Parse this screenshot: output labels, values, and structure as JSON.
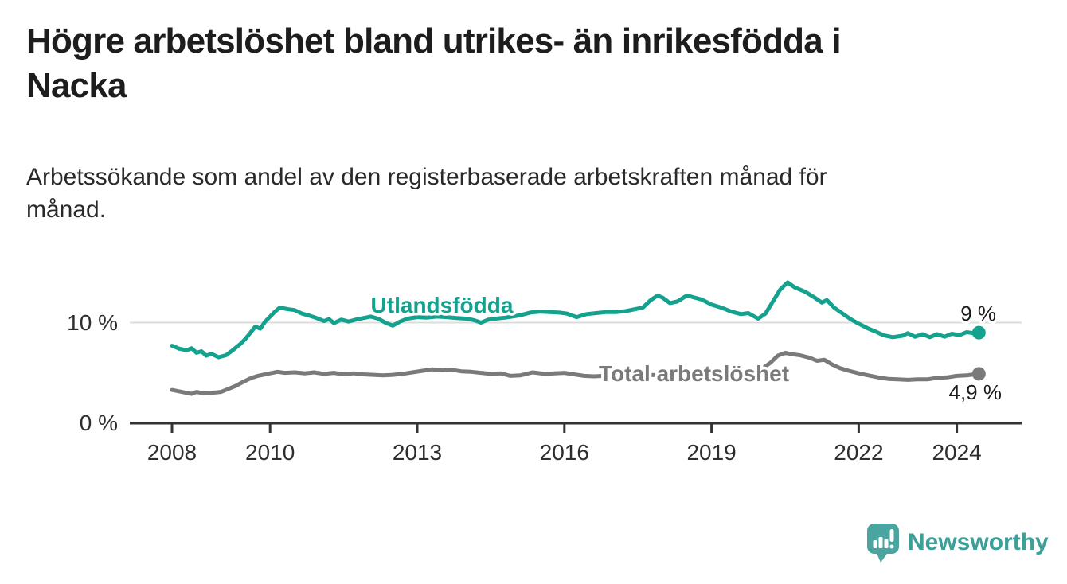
{
  "page": {
    "title": "Högre arbetslöshet bland utrikes- än inrikesfödda i\nNacka",
    "subtitle": "Arbetssökande som andel av den registerbaserade arbetskraften månad för\nmånad."
  },
  "colors": {
    "accent_teal": "#14a18d",
    "series_gray": "#7a7a7a",
    "grid_gray": "#dcdcdc",
    "axis_dark": "#333333",
    "text_dark": "#1d1d1d",
    "logo_teal": "#4aa5a0",
    "logo_text_teal": "#3aa099"
  },
  "footer": {
    "brand": "Newsworthy",
    "logo_icon": "newsworthy-speech-bubble-bar-chart-icon"
  },
  "chart_data": {
    "type": "line",
    "title": "Högre arbetslöshet bland utrikes- än inrikesfödda i Nacka",
    "subtitle": "Arbetssökande som andel av den registerbaserade arbetskraften månad för månad.",
    "xlabel": "",
    "ylabel": "",
    "unit": "%",
    "x_range": [
      2008,
      2024.45
    ],
    "y_range": [
      0,
      14.8
    ],
    "grid": "horizontal gridline at 10% only",
    "legend_position": "inline labels on lines",
    "y_ticks": [
      {
        "value": 0,
        "label": "0 %"
      },
      {
        "value": 10,
        "label": "10 %"
      }
    ],
    "x_ticks": [
      {
        "value": 2008,
        "label": "2008"
      },
      {
        "value": 2010,
        "label": "2010"
      },
      {
        "value": 2013,
        "label": "2013"
      },
      {
        "value": 2016,
        "label": "2016"
      },
      {
        "value": 2019,
        "label": "2019"
      },
      {
        "value": 2022,
        "label": "2022"
      },
      {
        "value": 2024,
        "label": "2024"
      }
    ],
    "series": [
      {
        "name": "Utlandsfödda",
        "color": "#14a18d",
        "end_label": "9 %",
        "end_value": 9.0,
        "points": [
          [
            2008.0,
            7.7
          ],
          [
            2008.15,
            7.4
          ],
          [
            2008.3,
            7.25
          ],
          [
            2008.4,
            7.45
          ],
          [
            2008.5,
            7.0
          ],
          [
            2008.6,
            7.15
          ],
          [
            2008.7,
            6.7
          ],
          [
            2008.8,
            6.9
          ],
          [
            2008.95,
            6.55
          ],
          [
            2009.1,
            6.75
          ],
          [
            2009.25,
            7.3
          ],
          [
            2009.4,
            7.9
          ],
          [
            2009.5,
            8.4
          ],
          [
            2009.6,
            9.0
          ],
          [
            2009.7,
            9.6
          ],
          [
            2009.8,
            9.4
          ],
          [
            2009.9,
            10.1
          ],
          [
            2010.0,
            10.6
          ],
          [
            2010.1,
            11.1
          ],
          [
            2010.2,
            11.5
          ],
          [
            2010.35,
            11.35
          ],
          [
            2010.5,
            11.25
          ],
          [
            2010.65,
            10.9
          ],
          [
            2010.8,
            10.7
          ],
          [
            2010.95,
            10.45
          ],
          [
            2011.1,
            10.15
          ],
          [
            2011.2,
            10.35
          ],
          [
            2011.3,
            9.95
          ],
          [
            2011.45,
            10.3
          ],
          [
            2011.6,
            10.1
          ],
          [
            2011.75,
            10.3
          ],
          [
            2011.9,
            10.45
          ],
          [
            2012.05,
            10.6
          ],
          [
            2012.2,
            10.4
          ],
          [
            2012.35,
            10.0
          ],
          [
            2012.5,
            9.7
          ],
          [
            2012.65,
            10.1
          ],
          [
            2012.8,
            10.4
          ],
          [
            2013.0,
            10.55
          ],
          [
            2013.2,
            10.5
          ],
          [
            2013.4,
            10.6
          ],
          [
            2013.6,
            10.55
          ],
          [
            2013.8,
            10.45
          ],
          [
            2014.0,
            10.4
          ],
          [
            2014.15,
            10.25
          ],
          [
            2014.3,
            10.0
          ],
          [
            2014.45,
            10.3
          ],
          [
            2014.6,
            10.4
          ],
          [
            2014.8,
            10.5
          ],
          [
            2015.0,
            10.65
          ],
          [
            2015.15,
            10.8
          ],
          [
            2015.3,
            11.0
          ],
          [
            2015.5,
            11.1
          ],
          [
            2015.7,
            11.05
          ],
          [
            2015.9,
            11.0
          ],
          [
            2016.05,
            10.9
          ],
          [
            2016.25,
            10.55
          ],
          [
            2016.45,
            10.85
          ],
          [
            2016.65,
            10.95
          ],
          [
            2016.85,
            11.05
          ],
          [
            2017.05,
            11.05
          ],
          [
            2017.25,
            11.15
          ],
          [
            2017.45,
            11.35
          ],
          [
            2017.6,
            11.5
          ],
          [
            2017.75,
            12.2
          ],
          [
            2017.9,
            12.7
          ],
          [
            2018.0,
            12.5
          ],
          [
            2018.15,
            11.95
          ],
          [
            2018.3,
            12.1
          ],
          [
            2018.5,
            12.7
          ],
          [
            2018.65,
            12.5
          ],
          [
            2018.8,
            12.3
          ],
          [
            2019.0,
            11.8
          ],
          [
            2019.2,
            11.5
          ],
          [
            2019.4,
            11.1
          ],
          [
            2019.6,
            10.85
          ],
          [
            2019.75,
            10.95
          ],
          [
            2019.95,
            10.4
          ],
          [
            2020.1,
            10.9
          ],
          [
            2020.25,
            12.1
          ],
          [
            2020.4,
            13.3
          ],
          [
            2020.55,
            14.0
          ],
          [
            2020.7,
            13.5
          ],
          [
            2020.9,
            13.1
          ],
          [
            2021.1,
            12.5
          ],
          [
            2021.25,
            12.0
          ],
          [
            2021.35,
            12.25
          ],
          [
            2021.5,
            11.5
          ],
          [
            2021.7,
            10.8
          ],
          [
            2021.85,
            10.3
          ],
          [
            2022.0,
            9.9
          ],
          [
            2022.2,
            9.4
          ],
          [
            2022.35,
            9.1
          ],
          [
            2022.5,
            8.75
          ],
          [
            2022.7,
            8.55
          ],
          [
            2022.9,
            8.7
          ],
          [
            2023.0,
            8.95
          ],
          [
            2023.15,
            8.6
          ],
          [
            2023.3,
            8.85
          ],
          [
            2023.45,
            8.55
          ],
          [
            2023.6,
            8.85
          ],
          [
            2023.75,
            8.6
          ],
          [
            2023.9,
            8.9
          ],
          [
            2024.05,
            8.75
          ],
          [
            2024.2,
            9.05
          ],
          [
            2024.35,
            8.95
          ],
          [
            2024.45,
            9.0
          ]
        ]
      },
      {
        "name": "Total arbetslöshet",
        "color": "#7a7a7a",
        "end_label": "4,9 %",
        "end_value": 4.9,
        "points": [
          [
            2008.0,
            3.3
          ],
          [
            2008.2,
            3.1
          ],
          [
            2008.4,
            2.9
          ],
          [
            2008.5,
            3.1
          ],
          [
            2008.65,
            2.95
          ],
          [
            2008.8,
            3.0
          ],
          [
            2009.0,
            3.1
          ],
          [
            2009.15,
            3.4
          ],
          [
            2009.3,
            3.7
          ],
          [
            2009.45,
            4.1
          ],
          [
            2009.6,
            4.45
          ],
          [
            2009.75,
            4.7
          ],
          [
            2009.9,
            4.85
          ],
          [
            2010.0,
            4.95
          ],
          [
            2010.15,
            5.1
          ],
          [
            2010.3,
            5.0
          ],
          [
            2010.5,
            5.05
          ],
          [
            2010.7,
            4.95
          ],
          [
            2010.9,
            5.05
          ],
          [
            2011.1,
            4.9
          ],
          [
            2011.3,
            5.0
          ],
          [
            2011.5,
            4.85
          ],
          [
            2011.7,
            4.95
          ],
          [
            2011.9,
            4.85
          ],
          [
            2012.1,
            4.8
          ],
          [
            2012.3,
            4.75
          ],
          [
            2012.5,
            4.8
          ],
          [
            2012.7,
            4.9
          ],
          [
            2012.9,
            5.05
          ],
          [
            2013.1,
            5.2
          ],
          [
            2013.3,
            5.35
          ],
          [
            2013.5,
            5.25
          ],
          [
            2013.7,
            5.3
          ],
          [
            2013.9,
            5.15
          ],
          [
            2014.1,
            5.1
          ],
          [
            2014.3,
            5.0
          ],
          [
            2014.5,
            4.9
          ],
          [
            2014.7,
            4.95
          ],
          [
            2014.9,
            4.7
          ],
          [
            2015.1,
            4.75
          ],
          [
            2015.35,
            5.05
          ],
          [
            2015.6,
            4.9
          ],
          [
            2015.8,
            4.95
          ],
          [
            2016.0,
            5.0
          ],
          [
            2016.2,
            4.85
          ],
          [
            2016.4,
            4.7
          ],
          [
            2016.6,
            4.65
          ],
          [
            2016.8,
            4.7
          ],
          [
            2017.0,
            4.75
          ],
          [
            2017.3,
            4.8
          ],
          [
            2017.6,
            4.75
          ],
          [
            2017.9,
            4.8
          ],
          [
            2018.2,
            4.85
          ],
          [
            2018.5,
            4.8
          ],
          [
            2018.8,
            4.85
          ],
          [
            2019.0,
            4.85
          ],
          [
            2019.3,
            4.9
          ],
          [
            2019.6,
            4.95
          ],
          [
            2019.8,
            5.05
          ],
          [
            2020.0,
            5.3
          ],
          [
            2020.2,
            6.0
          ],
          [
            2020.35,
            6.7
          ],
          [
            2020.5,
            7.0
          ],
          [
            2020.65,
            6.85
          ],
          [
            2020.8,
            6.75
          ],
          [
            2021.0,
            6.5
          ],
          [
            2021.15,
            6.2
          ],
          [
            2021.3,
            6.3
          ],
          [
            2021.45,
            5.85
          ],
          [
            2021.6,
            5.5
          ],
          [
            2021.8,
            5.2
          ],
          [
            2022.0,
            4.95
          ],
          [
            2022.2,
            4.75
          ],
          [
            2022.4,
            4.55
          ],
          [
            2022.6,
            4.4
          ],
          [
            2022.8,
            4.35
          ],
          [
            2023.0,
            4.3
          ],
          [
            2023.2,
            4.35
          ],
          [
            2023.4,
            4.35
          ],
          [
            2023.6,
            4.5
          ],
          [
            2023.8,
            4.55
          ],
          [
            2024.0,
            4.7
          ],
          [
            2024.2,
            4.75
          ],
          [
            2024.35,
            4.85
          ],
          [
            2024.45,
            4.9
          ]
        ]
      }
    ]
  }
}
